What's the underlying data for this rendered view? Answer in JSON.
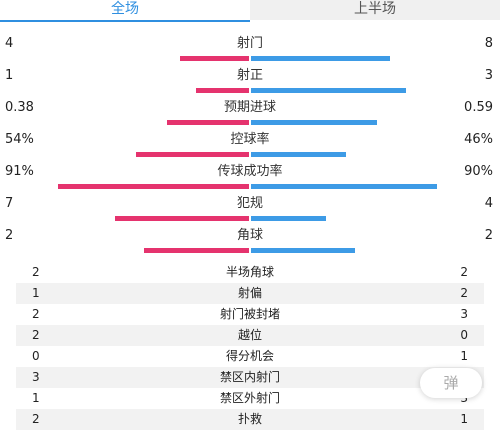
{
  "tabs": [
    {
      "label": "全场",
      "active": true
    },
    {
      "label": "上半场",
      "active": false
    }
  ],
  "colors": {
    "home": "#e5336e",
    "away": "#3d9be6",
    "accent": "#2f8fe0"
  },
  "bar_stats": [
    {
      "label": "射门",
      "left": "4",
      "right": "8",
      "left_share": 0.33,
      "right_share": 0.67
    },
    {
      "label": "射正",
      "left": "1",
      "right": "3",
      "left_share": 0.25,
      "right_share": 0.75
    },
    {
      "label": "预期进球",
      "left": "0.38",
      "right": "0.59",
      "left_share": 0.39,
      "right_share": 0.61
    },
    {
      "label": "控球率",
      "left": "54%",
      "right": "46%",
      "left_share": 0.54,
      "right_share": 0.46
    },
    {
      "label": "传球成功率",
      "left": "91%",
      "right": "90%",
      "left_share": 0.91,
      "right_share": 0.9
    },
    {
      "label": "犯规",
      "left": "7",
      "right": "4",
      "left_share": 0.64,
      "right_share": 0.36
    },
    {
      "label": "角球",
      "left": "2",
      "right": "2",
      "left_share": 0.5,
      "right_share": 0.5
    }
  ],
  "table_stats": [
    {
      "label": "半场角球",
      "left": "2",
      "right": "2"
    },
    {
      "label": "射偏",
      "left": "1",
      "right": "2"
    },
    {
      "label": "射门被封堵",
      "left": "2",
      "right": "3"
    },
    {
      "label": "越位",
      "left": "2",
      "right": "0"
    },
    {
      "label": "得分机会",
      "left": "0",
      "right": "1"
    },
    {
      "label": "禁区内射门",
      "left": "3",
      "right": ""
    },
    {
      "label": "禁区外射门",
      "left": "1",
      "right": "3"
    },
    {
      "label": "扑救",
      "left": "2",
      "right": "1"
    }
  ],
  "danmaku_button": {
    "label": "弹"
  }
}
